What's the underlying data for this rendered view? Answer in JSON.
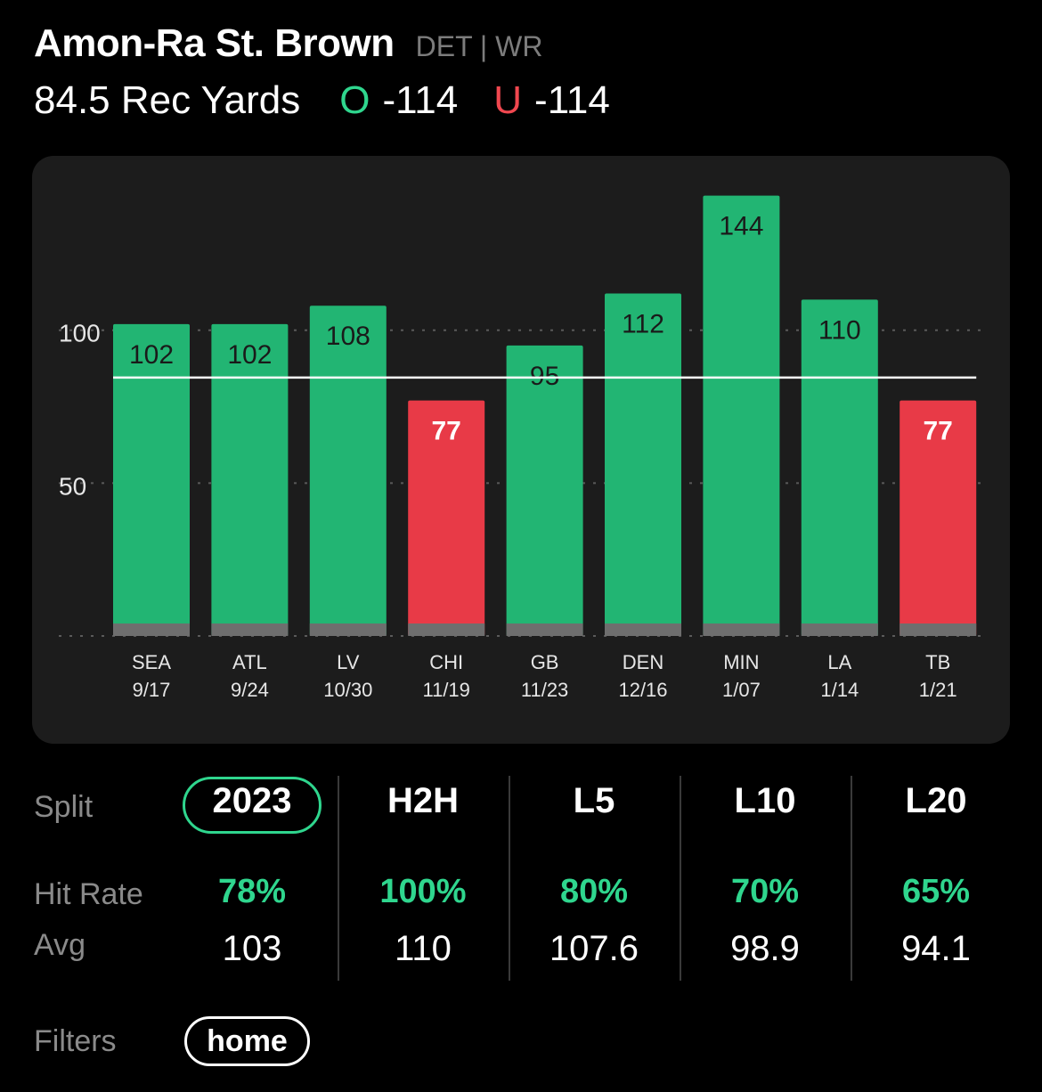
{
  "player": {
    "name": "Amon-Ra St. Brown",
    "team": "DET",
    "position": "WR"
  },
  "prop": {
    "label": "84.5 Rec Yards",
    "over_letter": "O",
    "over_odds": "-114",
    "under_letter": "U",
    "under_odds": "-114"
  },
  "colors": {
    "over": "#2fd68e",
    "bar_hit": "#22b573",
    "bar_miss": "#e83a47",
    "under": "#f0474f"
  },
  "chart_data": {
    "type": "bar",
    "line": 84.5,
    "ylim": [
      0,
      150
    ],
    "yticks": [
      50,
      100
    ],
    "games": [
      {
        "opp": "SEA",
        "date": "9/17",
        "value": 102
      },
      {
        "opp": "ATL",
        "date": "9/24",
        "value": 102
      },
      {
        "opp": "LV",
        "date": "10/30",
        "value": 108
      },
      {
        "opp": "CHI",
        "date": "11/19",
        "value": 77
      },
      {
        "opp": "GB",
        "date": "11/23",
        "value": 95
      },
      {
        "opp": "DEN",
        "date": "12/16",
        "value": 112
      },
      {
        "opp": "MIN",
        "date": "1/07",
        "value": 144
      },
      {
        "opp": "LA",
        "date": "1/14",
        "value": 110
      },
      {
        "opp": "TB",
        "date": "1/21",
        "value": 77
      }
    ]
  },
  "stats": {
    "split_label": "Split",
    "hit_rate_label": "Hit Rate",
    "avg_label": "Avg",
    "columns": [
      {
        "split": "2023",
        "hit_rate": "78%",
        "avg": "103"
      },
      {
        "split": "H2H",
        "hit_rate": "100%",
        "avg": "110"
      },
      {
        "split": "L5",
        "hit_rate": "80%",
        "avg": "107.6"
      },
      {
        "split": "L10",
        "hit_rate": "70%",
        "avg": "98.9"
      },
      {
        "split": "L20",
        "hit_rate": "65%",
        "avg": "94.1"
      }
    ],
    "selected_split": "2023"
  },
  "filters": {
    "label": "Filters",
    "chips": [
      "home"
    ]
  }
}
